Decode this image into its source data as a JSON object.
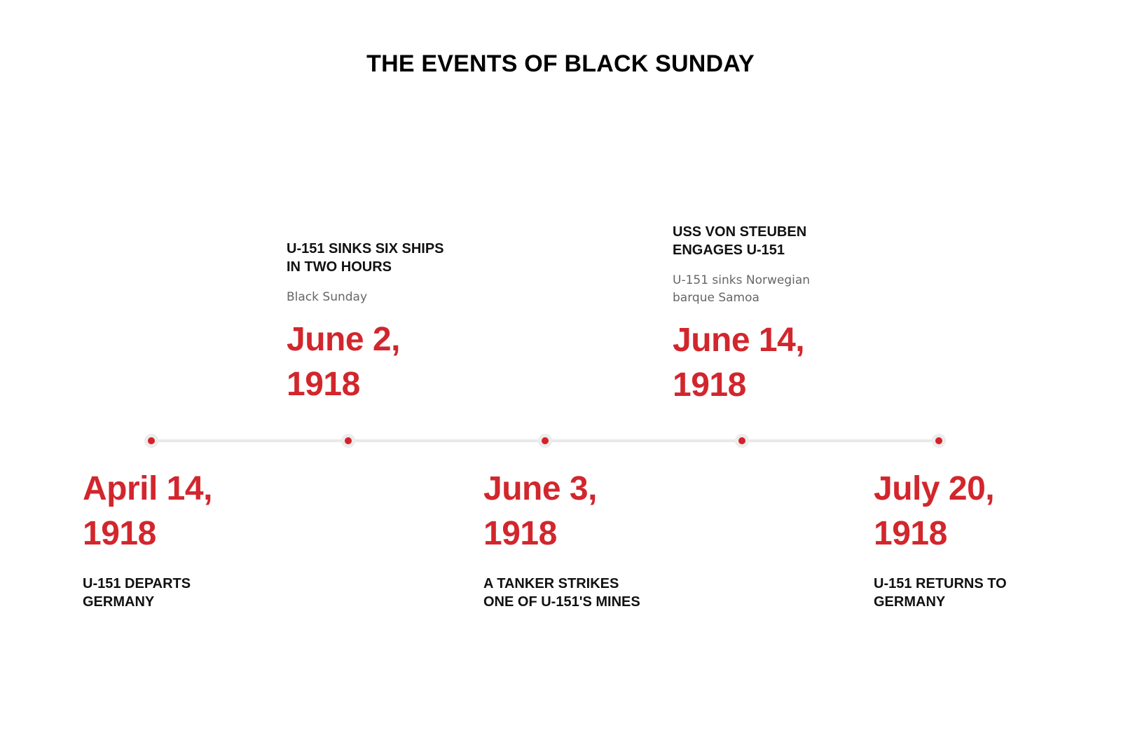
{
  "title": "THE EVENTS OF BLACK SUNDAY",
  "colors": {
    "accent": "#d2262d",
    "line": "#e9e9e9",
    "text": "#111111",
    "subtext": "#666666"
  },
  "events": [
    {
      "date_line1": "April 14,",
      "date_line2": "1918",
      "heading_line1": "U-151 DEPARTS",
      "heading_line2": "GERMANY",
      "position": "below"
    },
    {
      "date_line1": "June 2,",
      "date_line2": "1918",
      "heading_line1": "U-151 SINKS SIX SHIPS",
      "heading_line2": "IN TWO HOURS",
      "sub_line1": "Black Sunday",
      "position": "above"
    },
    {
      "date_line1": "June 3,",
      "date_line2": "1918",
      "heading_line1": "A TANKER STRIKES",
      "heading_line2": "ONE OF U-151'S MINES",
      "position": "below"
    },
    {
      "date_line1": "June 14,",
      "date_line2": "1918",
      "heading_line1": "USS VON STEUBEN",
      "heading_line2": "ENGAGES U-151",
      "sub_line1": "U-151 sinks Norwegian",
      "sub_line2": "barque Samoa",
      "position": "above"
    },
    {
      "date_line1": "July 20,",
      "date_line2": "1918",
      "heading_line1": "U-151 RETURNS TO",
      "heading_line2": "GERMANY",
      "position": "below"
    }
  ]
}
